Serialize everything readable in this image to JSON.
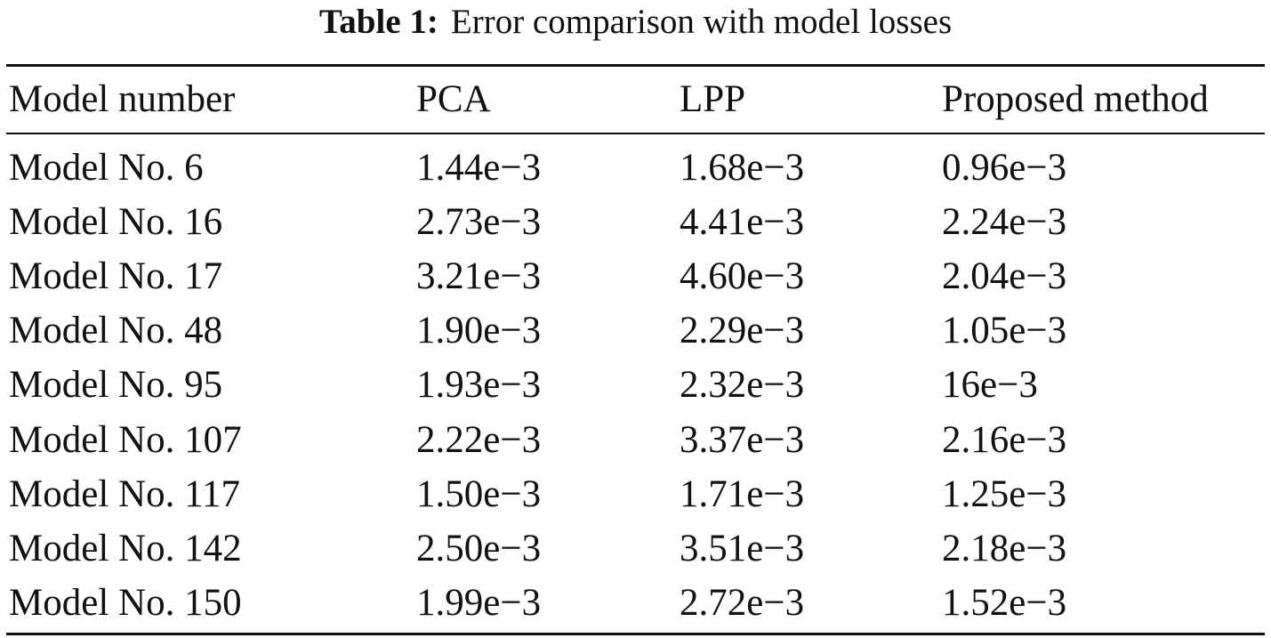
{
  "caption": {
    "label": "Table 1:",
    "text": "Error comparison with model losses"
  },
  "table": {
    "headers": [
      "Model number",
      "PCA",
      "LPP",
      "Proposed method"
    ],
    "rows": [
      [
        "Model No. 6",
        "1.44e−3",
        "1.68e−3",
        "0.96e−3"
      ],
      [
        "Model No. 16",
        "2.73e−3",
        "4.41e−3",
        "2.24e−3"
      ],
      [
        "Model No. 17",
        "3.21e−3",
        "4.60e−3",
        "2.04e−3"
      ],
      [
        "Model No. 48",
        "1.90e−3",
        "2.29e−3",
        "1.05e−3"
      ],
      [
        "Model No. 95",
        "1.93e−3",
        "2.32e−3",
        "16e−3"
      ],
      [
        "Model No. 107",
        "2.22e−3",
        "3.37e−3",
        "2.16e−3"
      ],
      [
        "Model No. 117",
        "1.50e−3",
        "1.71e−3",
        "1.25e−3"
      ],
      [
        "Model No. 142",
        "2.50e−3",
        "3.51e−3",
        "2.18e−3"
      ],
      [
        "Model No. 150",
        "1.99e−3",
        "2.72e−3",
        "1.52e−3"
      ]
    ]
  }
}
